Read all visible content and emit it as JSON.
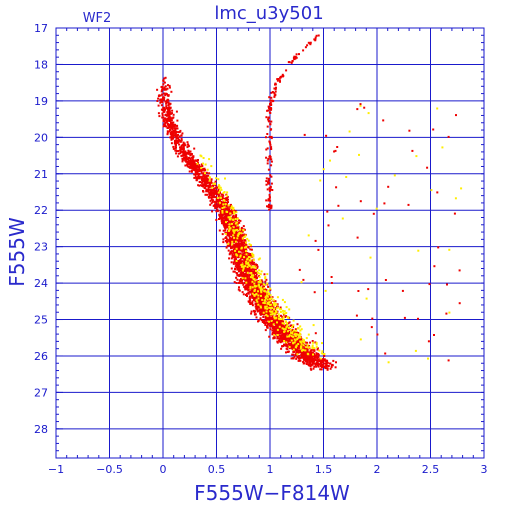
{
  "chart_data": {
    "type": "scatter",
    "title": "lmc_u3y501",
    "panel_label": "WF2",
    "xlabel": "F555W−F814W",
    "ylabel": "F555W",
    "xlim": [
      -1,
      3
    ],
    "ylim": [
      28.8,
      17
    ],
    "y_inverted": true,
    "grid": true,
    "x_ticks": [
      -1,
      -0.5,
      0,
      0.5,
      1,
      1.5,
      2,
      2.5,
      3
    ],
    "x_tick_labels": [
      "−1",
      "−0.5",
      "0",
      "0.5",
      "1",
      "1.5",
      "2",
      "2.5",
      "3"
    ],
    "y_ticks": [
      17,
      18,
      19,
      20,
      21,
      22,
      23,
      24,
      25,
      26,
      27,
      28
    ],
    "y_tick_labels": [
      "17",
      "18",
      "19",
      "20",
      "21",
      "22",
      "23",
      "24",
      "25",
      "26",
      "27",
      "28"
    ],
    "series": [
      {
        "color": "#ee0000",
        "ridge": [
          [
            18.4,
            0.0
          ],
          [
            19.0,
            0.02
          ],
          [
            19.5,
            0.05
          ],
          [
            20.0,
            0.12
          ],
          [
            20.5,
            0.22
          ],
          [
            21.0,
            0.35
          ],
          [
            21.5,
            0.48
          ],
          [
            22.0,
            0.58
          ],
          [
            22.5,
            0.65
          ],
          [
            23.0,
            0.7
          ],
          [
            23.5,
            0.76
          ],
          [
            24.0,
            0.83
          ],
          [
            24.5,
            0.92
          ],
          [
            25.0,
            1.03
          ],
          [
            25.5,
            1.17
          ],
          [
            26.0,
            1.35
          ],
          [
            26.3,
            1.5
          ]
        ],
        "branch": [
          [
            17.2,
            1.45
          ],
          [
            18.0,
            1.18
          ],
          [
            18.6,
            1.05
          ],
          [
            19.2,
            1.0
          ],
          [
            20.0,
            0.99
          ],
          [
            21.0,
            0.99
          ],
          [
            22.0,
            1.0
          ]
        ]
      },
      {
        "color": "#ffee00",
        "ridge": [
          [
            20.5,
            0.35
          ],
          [
            21.0,
            0.45
          ],
          [
            21.5,
            0.55
          ],
          [
            22.0,
            0.62
          ],
          [
            22.5,
            0.68
          ],
          [
            23.0,
            0.74
          ],
          [
            23.5,
            0.8
          ],
          [
            24.0,
            0.88
          ],
          [
            24.5,
            0.98
          ],
          [
            25.0,
            1.1
          ],
          [
            25.5,
            1.25
          ],
          [
            26.0,
            1.4
          ]
        ]
      }
    ]
  }
}
